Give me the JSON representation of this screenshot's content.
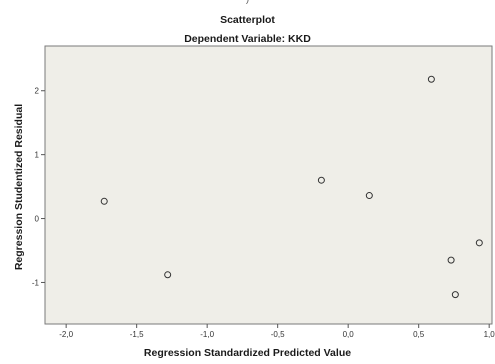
{
  "title": "Scatterplot",
  "subtitle": "Dependent Variable: KKD",
  "top_cut_text": ")",
  "chart_data": {
    "type": "scatter",
    "title": "Scatterplot",
    "subtitle": "Dependent Variable: KKD",
    "xlabel": "Regression Standardized Predicted Value",
    "ylabel": "Regression Studentized Residual",
    "xlim": [
      -2.15,
      1.02
    ],
    "ylim": [
      -1.65,
      2.7
    ],
    "xticks": [
      -2.0,
      -1.5,
      -1.0,
      -0.5,
      0.0,
      0.5,
      1.0
    ],
    "xtick_labels": [
      "-2,0",
      "-1,5",
      "-1,0",
      "-0,5",
      "0,0",
      "0,5",
      "1,0"
    ],
    "yticks": [
      -1,
      0,
      1,
      2
    ],
    "ytick_labels": [
      "-1",
      "0",
      "1",
      "2"
    ],
    "grid": false,
    "background": "#efeee8",
    "marker": "open-circle",
    "points": [
      {
        "x": -1.73,
        "y": 0.27
      },
      {
        "x": -1.28,
        "y": -0.88
      },
      {
        "x": -0.19,
        "y": 0.6
      },
      {
        "x": 0.15,
        "y": 0.36
      },
      {
        "x": 0.59,
        "y": 2.18
      },
      {
        "x": 0.73,
        "y": -0.65
      },
      {
        "x": 0.76,
        "y": -1.19
      },
      {
        "x": 0.93,
        "y": -0.38
      }
    ]
  }
}
